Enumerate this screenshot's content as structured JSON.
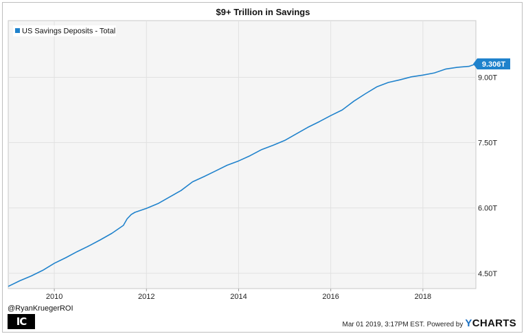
{
  "title": "$9+ Trillion in Savings",
  "footer": {
    "handle": "@RyanKruegerROI",
    "logo_text": "IC",
    "timestamp": "Mar 01 2019, 3:17PM EST.",
    "powered_by": "Powered by",
    "brand_y": "Y",
    "brand_rest": "CHARTS"
  },
  "colors": {
    "series": "#1f82cc",
    "plot_bg": "#f5f5f5",
    "grid": "#e1e1e1"
  },
  "chart_data": {
    "type": "line",
    "title": "$9+ Trillion in Savings",
    "legend": {
      "position": "top-left",
      "entries": [
        "US Savings Deposits - Total"
      ]
    },
    "xlim": [
      2009.0,
      2019.15
    ],
    "ylim": [
      4.15,
      10.3
    ],
    "x_ticks": [
      2010,
      2012,
      2014,
      2016,
      2018
    ],
    "x_tick_labels": [
      "2010",
      "2012",
      "2014",
      "2016",
      "2018"
    ],
    "y_ticks": [
      4.5,
      6.0,
      7.5,
      9.0
    ],
    "y_tick_labels": [
      "4.50T",
      "6.00T",
      "7.50T",
      "9.00T"
    ],
    "y_axis_side": "right",
    "grid": true,
    "last_value_label": "9.306T",
    "series": [
      {
        "name": "US Savings Deposits - Total",
        "x": [
          2009.0,
          2009.25,
          2009.5,
          2009.75,
          2010.0,
          2010.25,
          2010.5,
          2010.75,
          2011.0,
          2011.25,
          2011.5,
          2011.58,
          2011.67,
          2011.75,
          2012.0,
          2012.25,
          2012.5,
          2012.75,
          2013.0,
          2013.25,
          2013.5,
          2013.75,
          2014.0,
          2014.25,
          2014.5,
          2014.75,
          2015.0,
          2015.25,
          2015.5,
          2015.75,
          2016.0,
          2016.25,
          2016.5,
          2016.75,
          2017.0,
          2017.25,
          2017.5,
          2017.75,
          2018.0,
          2018.25,
          2018.5,
          2018.75,
          2019.0,
          2019.15
        ],
        "y": [
          4.2,
          4.33,
          4.44,
          4.57,
          4.73,
          4.86,
          5.0,
          5.13,
          5.27,
          5.42,
          5.6,
          5.75,
          5.85,
          5.9,
          5.99,
          6.1,
          6.25,
          6.4,
          6.6,
          6.72,
          6.85,
          6.98,
          7.08,
          7.2,
          7.34,
          7.44,
          7.55,
          7.7,
          7.85,
          7.98,
          8.12,
          8.25,
          8.45,
          8.62,
          8.78,
          8.88,
          8.94,
          9.01,
          9.05,
          9.1,
          9.19,
          9.23,
          9.25,
          9.306
        ]
      }
    ]
  }
}
